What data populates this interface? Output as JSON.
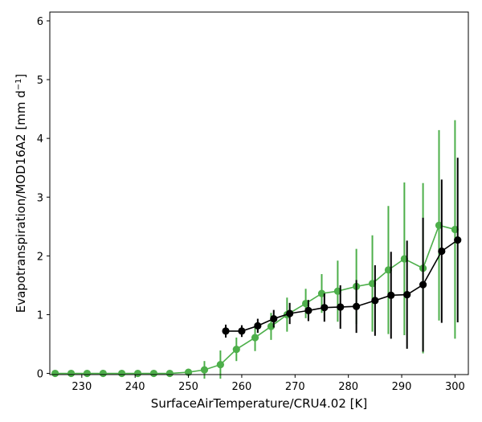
{
  "chart_data": {
    "type": "line",
    "title": "",
    "xlabel": "SurfaceAirTemperature/CRU4.02 [K]",
    "ylabel_main": "Evapotranspiration/MOD16A2 [mm d",
    "ylabel_sup": "−1",
    "ylabel_end": "]",
    "xlim": [
      224,
      302.5
    ],
    "ylim": [
      -0.02,
      6.15
    ],
    "xticks": [
      230,
      240,
      250,
      260,
      270,
      280,
      290,
      300
    ],
    "yticks": [
      0,
      1,
      2,
      3,
      4,
      5,
      6
    ],
    "grid": false,
    "series": [
      {
        "color": "#4daf4a",
        "x": [
          225.0,
          228.0,
          231.0,
          234.0,
          237.5,
          240.5,
          243.5,
          246.5,
          250.0,
          253.0,
          256.0,
          259.0,
          262.5,
          265.5,
          268.5,
          272.0,
          275.0,
          278.0,
          281.5,
          284.5,
          287.5,
          290.5,
          294.0,
          297.0,
          300.0
        ],
        "y": [
          0.0,
          0.0,
          0.0,
          0.0,
          0.0,
          0.0,
          0.0,
          0.0,
          0.02,
          0.06,
          0.15,
          0.41,
          0.61,
          0.8,
          1.0,
          1.19,
          1.36,
          1.4,
          1.48,
          1.53,
          1.76,
          1.95,
          1.79,
          2.52,
          2.45
        ],
        "err": [
          0.0,
          0.0,
          0.0,
          0.0,
          0.0,
          0.03,
          0.0,
          0.0,
          0.05,
          0.15,
          0.24,
          0.2,
          0.23,
          0.23,
          0.29,
          0.25,
          0.33,
          0.52,
          0.64,
          0.82,
          1.09,
          1.3,
          1.45,
          1.62,
          1.86
        ]
      },
      {
        "color": "#000000",
        "x": [
          257.0,
          260.0,
          263.0,
          266.0,
          269.0,
          272.5,
          275.5,
          278.5,
          281.5,
          285.0,
          288.0,
          291.0,
          294.0,
          297.5,
          300.5
        ],
        "y": [
          0.72,
          0.72,
          0.81,
          0.93,
          1.02,
          1.07,
          1.12,
          1.13,
          1.14,
          1.24,
          1.33,
          1.34,
          1.51,
          2.08,
          2.27
        ],
        "err": [
          0.11,
          0.1,
          0.12,
          0.15,
          0.18,
          0.18,
          0.24,
          0.37,
          0.45,
          0.6,
          0.74,
          0.92,
          1.14,
          1.22,
          1.4
        ]
      }
    ]
  }
}
